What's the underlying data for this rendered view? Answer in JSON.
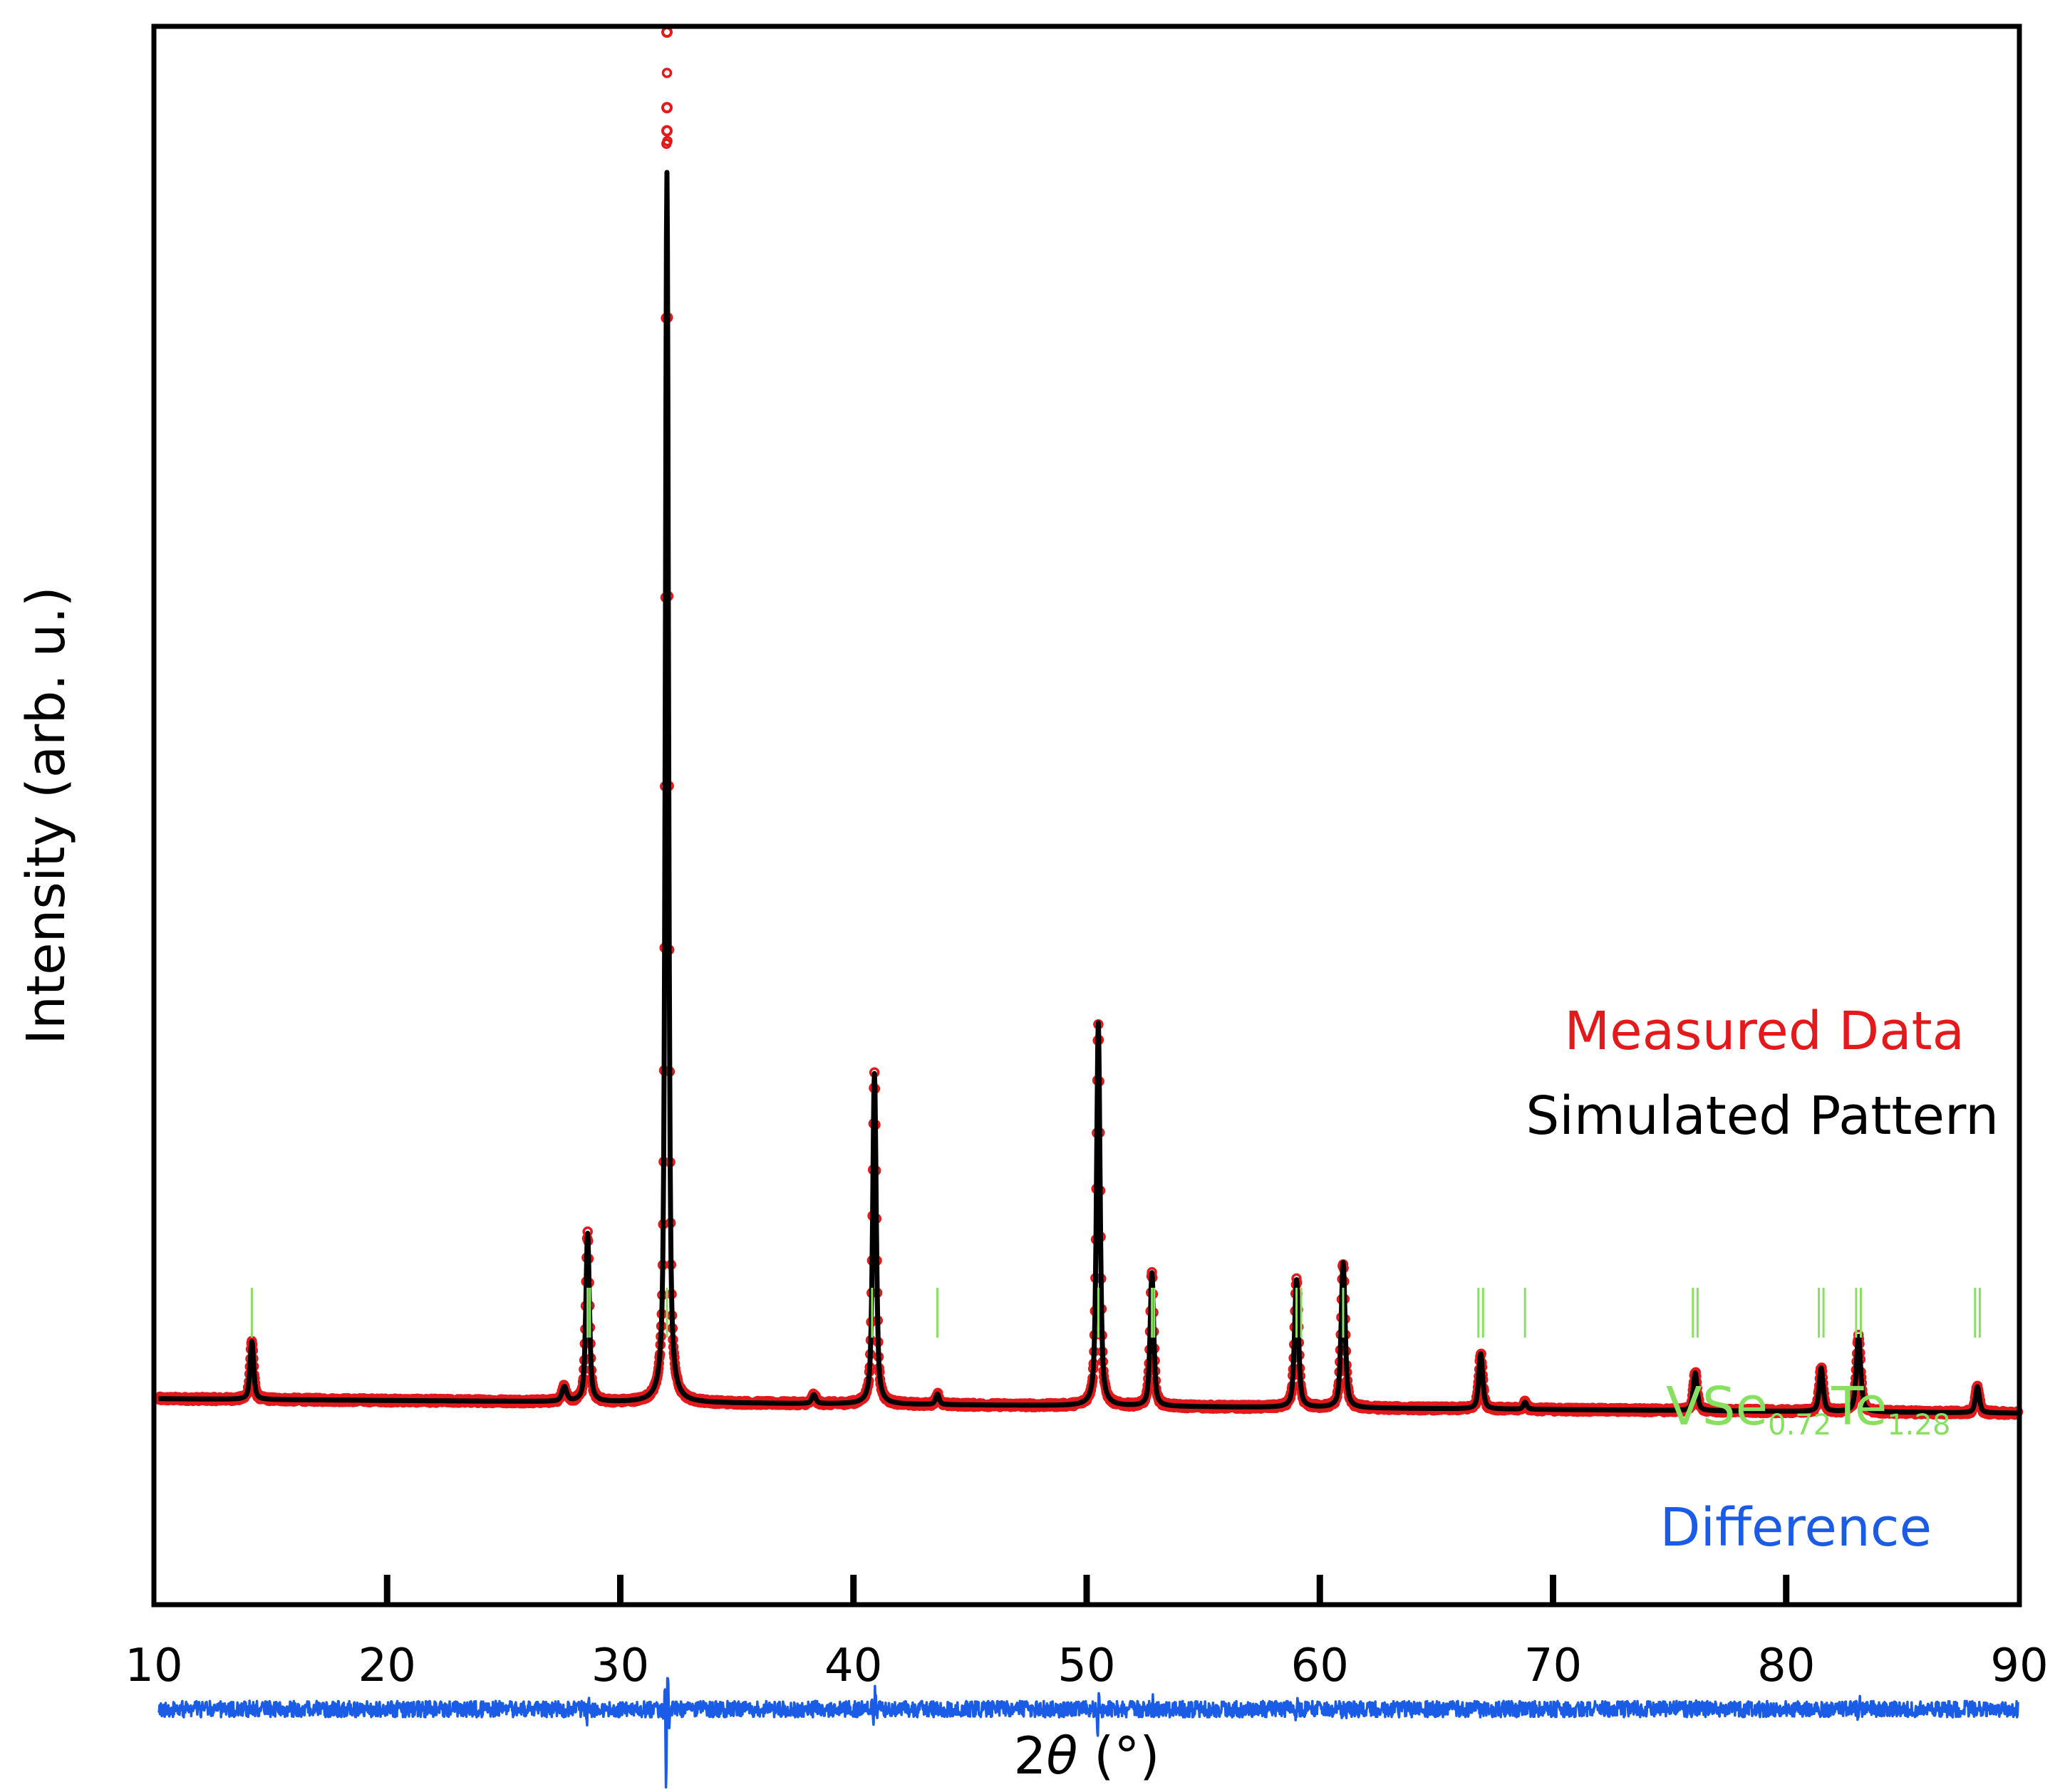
{
  "chart_data": {
    "type": "line",
    "title": "",
    "xlabel_prefix": "2",
    "xlabel_symbol": "θ",
    "xlabel_unit": " (°)",
    "ylabel": "Intensity (arb. u.)",
    "xlim": [
      10,
      90
    ],
    "ylim": [
      -3.2,
      24
    ],
    "xticks": [
      10,
      20,
      30,
      40,
      50,
      60,
      70,
      80,
      90
    ],
    "xtick_labels": [
      "10",
      "20",
      "30",
      "40",
      "50",
      "60",
      "70",
      "80",
      "90"
    ],
    "peaks": [
      {
        "x": 14.2,
        "y": 1.0,
        "w": 0.09
      },
      {
        "x": 27.6,
        "y": 0.25,
        "w": 0.12
      },
      {
        "x": 28.6,
        "y": 2.9,
        "w": 0.09
      },
      {
        "x": 32.0,
        "y": 21.2,
        "w": 0.08
      },
      {
        "x": 38.3,
        "y": 0.15,
        "w": 0.1
      },
      {
        "x": 40.9,
        "y": 5.7,
        "w": 0.09
      },
      {
        "x": 43.6,
        "y": 0.18,
        "w": 0.09
      },
      {
        "x": 50.5,
        "y": 6.6,
        "w": 0.09
      },
      {
        "x": 52.8,
        "y": 2.3,
        "w": 0.09
      },
      {
        "x": 59.0,
        "y": 2.2,
        "w": 0.1
      },
      {
        "x": 61.0,
        "y": 2.5,
        "w": 0.1
      },
      {
        "x": 66.9,
        "y": 0.95,
        "w": 0.1
      },
      {
        "x": 68.8,
        "y": 0.12,
        "w": 0.09
      },
      {
        "x": 76.1,
        "y": 0.65,
        "w": 0.1
      },
      {
        "x": 81.5,
        "y": 0.75,
        "w": 0.1
      },
      {
        "x": 83.1,
        "y": 1.3,
        "w": 0.11
      },
      {
        "x": 88.2,
        "y": 0.45,
        "w": 0.1
      }
    ],
    "series": [
      {
        "name": "Measured Data",
        "color": "#e3191c",
        "style": "open-circles"
      },
      {
        "name": "Simulated Pattern",
        "color": "#000000",
        "style": "line"
      },
      {
        "name": "Difference",
        "color": "#1a5ce6",
        "style": "line",
        "offset": -5.0
      },
      {
        "name": "VSe0.72Te1.28 reflections",
        "color": "#88e060",
        "style": "ticks"
      }
    ],
    "reflections_2theta": [
      14.2,
      28.6,
      28.7,
      32.0,
      40.8,
      43.6,
      50.5,
      52.8,
      52.9,
      59.0,
      59.2,
      61.0,
      66.8,
      67.0,
      68.8,
      76.0,
      76.2,
      81.4,
      81.6,
      83.0,
      83.2,
      88.1,
      88.3
    ],
    "legend": {
      "measured": "Measured Data",
      "simulated": "Simulated Pattern",
      "phase_main": "VSe",
      "phase_sub1": "0.72",
      "phase_mid": "Te",
      "phase_sub2": "1.28",
      "difference": "Difference",
      "placement": "right"
    },
    "colors": {
      "measured": "#e3191c",
      "simulated": "#000000",
      "phase": "#88e060",
      "difference": "#1a5ce6",
      "axes": "#000000"
    }
  }
}
